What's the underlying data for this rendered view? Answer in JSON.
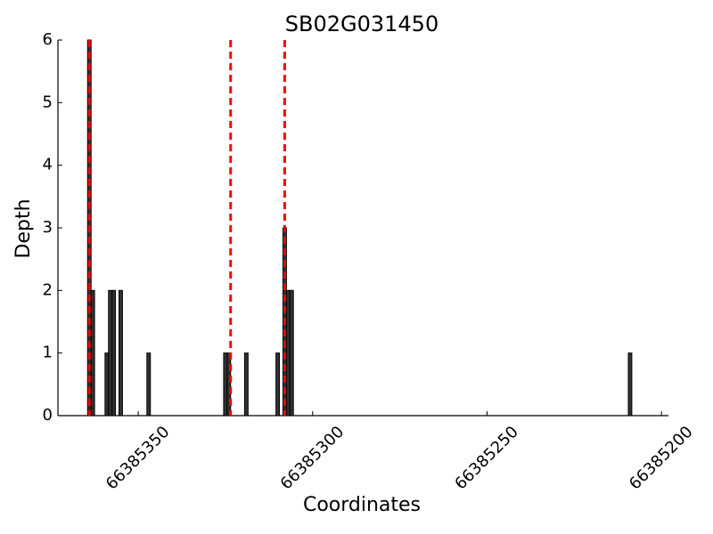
{
  "chart_data": {
    "type": "bar",
    "title": "SB02G031450",
    "x_label": "Coordinates",
    "y_label": "Depth",
    "x": [
      66385364,
      66385363,
      66385359,
      66385358,
      66385357,
      66385355,
      66385347,
      66385325,
      66385324,
      66385319,
      66385310,
      66385308,
      66385307,
      66385306,
      66385209
    ],
    "values": [
      6,
      2,
      1,
      2,
      2,
      2,
      1,
      1,
      1,
      1,
      1,
      3,
      2,
      2,
      1
    ],
    "color": "#333333",
    "vlines": [
      66385364,
      66385323.5,
      66385308
    ],
    "vline_color": "#ff0000",
    "xlim": [
      66385373,
      66385198
    ],
    "xticks": [
      66385350,
      66385300,
      66385250,
      66385200
    ],
    "ylim": [
      0,
      6
    ],
    "yticks": [
      0,
      1,
      2,
      3,
      4,
      5,
      6
    ]
  }
}
